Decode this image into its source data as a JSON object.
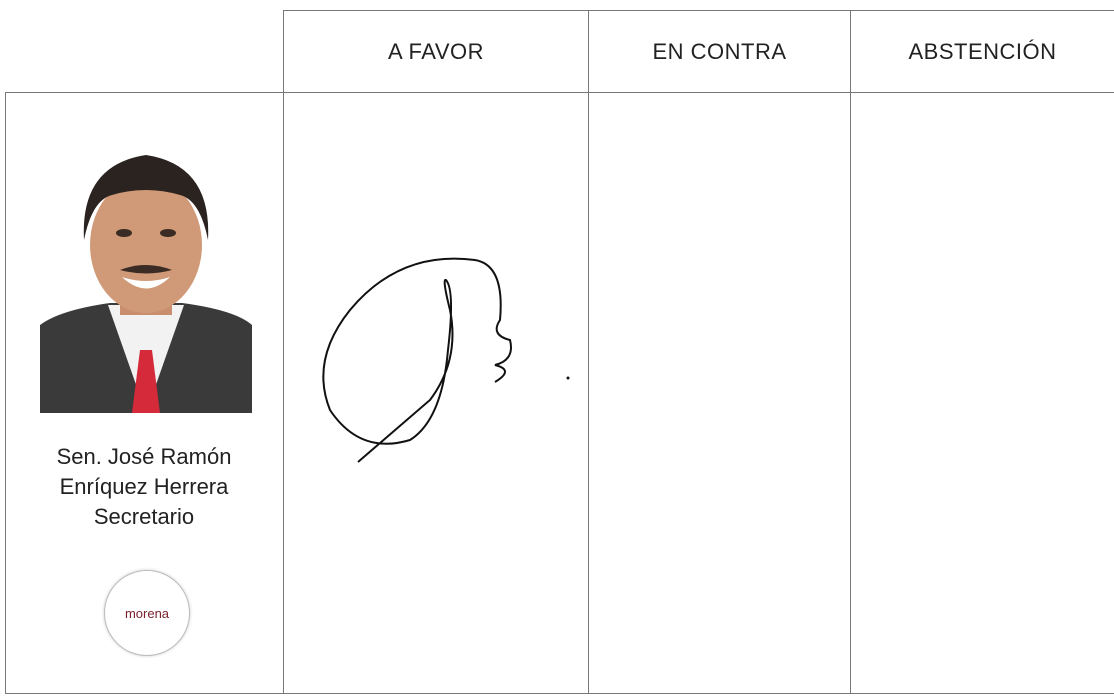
{
  "table": {
    "headers": [
      "A FAVOR",
      "EN CONTRA",
      "ABSTENCIÓN"
    ],
    "rows": [
      {
        "name_lines": [
          "Sen. José Ramón",
          "Enríquez Herrera",
          "Secretario"
        ],
        "party": "morena"
      }
    ]
  }
}
